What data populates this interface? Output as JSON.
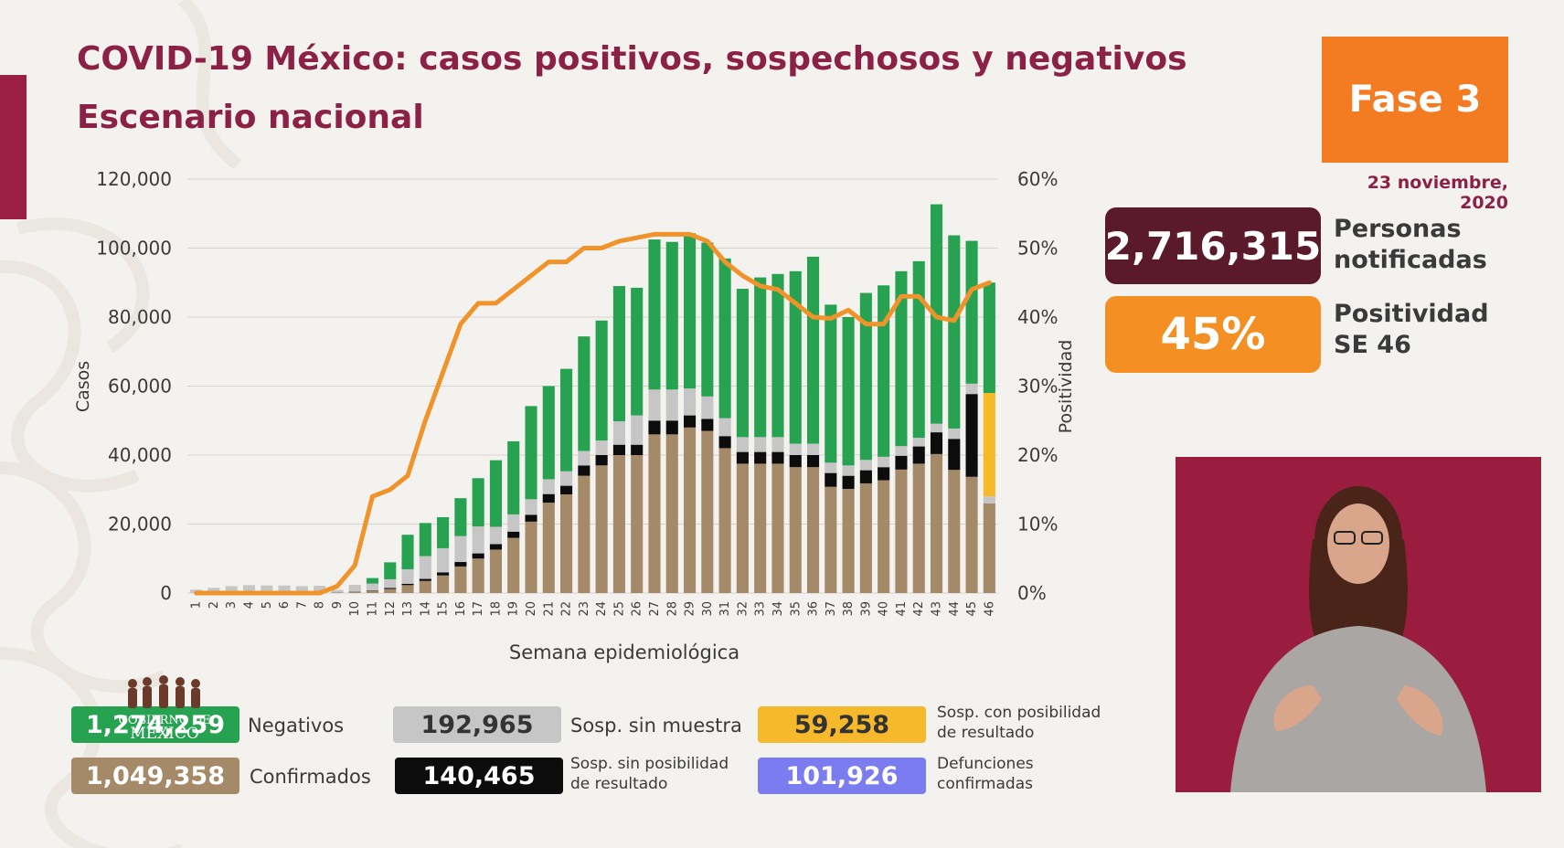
{
  "header": {
    "title": "COVID-19 México: casos positivos, sospechosos y negativos",
    "subtitle": "Escenario nacional",
    "phase": "Fase 3",
    "date": "23 noviembre, 2020"
  },
  "kpis": {
    "notified_value": "2,716,315",
    "notified_label_1": "Personas",
    "notified_label_2": "notificadas",
    "positivity_value": "45%",
    "positivity_label_1": "Positividad",
    "positivity_label_2": "SE 46"
  },
  "legend": {
    "negatives_value": "1,274,259",
    "negatives_label": "Negativos",
    "confirmed_value": "1,049,358",
    "confirmed_label": "Confirmados",
    "suspected_nosample_value": "192,965",
    "suspected_nosample_label": "Sosp. sin muestra",
    "suspected_noresult_value": "140,465",
    "suspected_noresult_label_1": "Sosp. sin posibilidad",
    "suspected_noresult_label_2": "de resultado",
    "suspected_pending_value": "59,258",
    "suspected_pending_label_1": "Sosp. con posibilidad",
    "suspected_pending_label_2": "de resultado",
    "deaths_value": "101,926",
    "deaths_label_1": "Defunciones",
    "deaths_label_2": "confirmadas"
  },
  "logo": {
    "line1": "GOBIERNO DE",
    "line2": "MÉXICO"
  },
  "colors": {
    "confirmed": "#a48a68",
    "noresult": "#0c0c0c",
    "nosample": "#c6c6c6",
    "negatives": "#27a251",
    "pending": "#f6b92b",
    "deaths": "#7b7cf0",
    "positivity_line": "#ef932a",
    "title": "#8b2146"
  },
  "chart_data": {
    "type": "bar",
    "stacked": true,
    "xlabel": "Semana epidemiológica",
    "ylabel": "Casos",
    "y2label": "Positividad",
    "ylim": [
      0,
      120000
    ],
    "y2lim": [
      0,
      60
    ],
    "yticks": [
      "0",
      "20,000",
      "40,000",
      "60,000",
      "80,000",
      "100,000",
      "120,000"
    ],
    "y2ticks": [
      "0%",
      "10%",
      "20%",
      "30%",
      "40%",
      "50%",
      "60%"
    ],
    "categories": [
      "1",
      "2",
      "3",
      "4",
      "5",
      "6",
      "7",
      "8",
      "9",
      "10",
      "11",
      "12",
      "13",
      "14",
      "15",
      "16",
      "17",
      "18",
      "19",
      "20",
      "21",
      "22",
      "23",
      "24",
      "25",
      "26",
      "27",
      "28",
      "29",
      "30",
      "31",
      "32",
      "33",
      "34",
      "35",
      "36",
      "37",
      "38",
      "39",
      "40",
      "41",
      "42",
      "43",
      "44",
      "45",
      "46"
    ],
    "series": [
      {
        "name": "Confirmados",
        "values": [
          0,
          0,
          0,
          0,
          0,
          0,
          0,
          0,
          100,
          300,
          600,
          1200,
          2300,
          3500,
          5100,
          7700,
          10000,
          12600,
          16000,
          20700,
          26200,
          28600,
          34000,
          37000,
          40000,
          40000,
          46000,
          46000,
          48000,
          47000,
          42000,
          37500,
          37500,
          37500,
          36500,
          36500,
          30800,
          30200,
          31800,
          32700,
          35800,
          37500,
          40300,
          35700,
          33700,
          26000
        ]
      },
      {
        "name": "Sosp. sin posibilidad de resultado",
        "values": [
          0,
          0,
          0,
          0,
          0,
          0,
          0,
          0,
          20,
          80,
          150,
          300,
          400,
          600,
          900,
          1300,
          1500,
          1600,
          1800,
          2000,
          2500,
          2500,
          3000,
          3000,
          3000,
          3000,
          4000,
          4000,
          3500,
          3500,
          3500,
          3400,
          3400,
          3400,
          3500,
          3500,
          4000,
          3800,
          3800,
          3800,
          4000,
          5000,
          6300,
          9000,
          24000,
          0
        ]
      },
      {
        "name": "Sosp. sin muestra",
        "values": [
          1000,
          1500,
          2000,
          2300,
          2200,
          2200,
          2000,
          2100,
          800,
          2000,
          2000,
          2500,
          4200,
          6600,
          7000,
          7500,
          7800,
          5000,
          5000,
          4500,
          4300,
          4200,
          4200,
          4200,
          6800,
          8500,
          9000,
          9000,
          7800,
          6500,
          5200,
          4300,
          4300,
          4300,
          3300,
          3300,
          3000,
          3000,
          3000,
          3000,
          2800,
          2500,
          2500,
          3000,
          3000,
          2000
        ]
      },
      {
        "name": "Sosp. con posibilidad de resultado",
        "values": [
          0,
          0,
          0,
          0,
          0,
          0,
          0,
          0,
          0,
          0,
          0,
          0,
          0,
          0,
          0,
          0,
          0,
          0,
          0,
          0,
          0,
          0,
          0,
          0,
          0,
          0,
          0,
          0,
          0,
          0,
          0,
          0,
          0,
          0,
          0,
          0,
          0,
          0,
          0,
          0,
          0,
          0,
          0,
          0,
          0,
          30000
        ]
      },
      {
        "name": "Negativos",
        "values": [
          0,
          0,
          0,
          0,
          0,
          0,
          0,
          0,
          0,
          0,
          1600,
          4900,
          10000,
          9600,
          9000,
          11000,
          14000,
          19300,
          21200,
          27000,
          27000,
          29700,
          33200,
          34800,
          39200,
          37000,
          43500,
          42800,
          45000,
          44600,
          46300,
          43000,
          46300,
          47300,
          50000,
          54200,
          45800,
          43000,
          48400,
          49700,
          50700,
          51200,
          63600,
          56000,
          41400,
          32000
        ]
      }
    ],
    "positivity_pct": [
      0,
      0,
      0,
      0,
      0,
      0,
      0,
      0,
      1,
      4,
      14,
      15,
      17,
      25,
      32,
      39,
      42,
      42,
      44,
      46,
      48,
      48,
      50,
      50,
      51,
      51.5,
      52,
      52,
      52,
      51,
      48,
      46,
      44.5,
      44,
      42,
      40,
      39.8,
      41,
      39,
      39,
      43,
      43,
      40,
      39.5,
      44,
      45
    ]
  }
}
